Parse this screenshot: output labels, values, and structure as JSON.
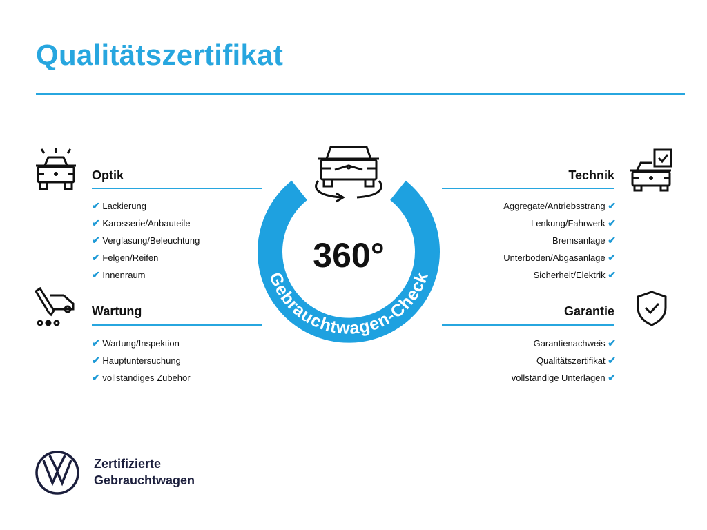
{
  "title": "Qualitätszertifikat",
  "colors": {
    "accent": "#27a6df",
    "ring": "#1ea1e0",
    "dark": "#1b1e3c"
  },
  "center": {
    "big": "360°",
    "ring_text": "Gebrauchtwagen-Check",
    "icon": "car-rotate-icon"
  },
  "sections": {
    "optik": {
      "title": "Optik",
      "icon": "car-lights-icon",
      "items": [
        "Lackierung",
        "Karosserie/Anbauteile",
        "Verglasung/Beleuchtung",
        "Felgen/Reifen",
        "Innenraum"
      ]
    },
    "wartung": {
      "title": "Wartung",
      "icon": "service-truck-icon",
      "items": [
        "Wartung/Inspektion",
        "Hauptuntersuchung",
        "vollständiges Zubehör"
      ]
    },
    "technik": {
      "title": "Technik",
      "icon": "car-checkbox-icon",
      "items": [
        "Aggregate/Antriebsstrang",
        "Lenkung/Fahrwerk",
        "Bremsanlage",
        "Unterboden/Abgasanlage",
        "Sicherheit/Elektrik"
      ]
    },
    "garantie": {
      "title": "Garantie",
      "icon": "shield-check-icon",
      "items": [
        "Garantienachweis",
        "Qualitätszertifikat",
        "vollständige Unterlagen"
      ]
    }
  },
  "check": "✔",
  "footer": {
    "line1": "Zertifizierte",
    "line2": "Gebrauchtwagen",
    "logo": "vw-logo"
  }
}
